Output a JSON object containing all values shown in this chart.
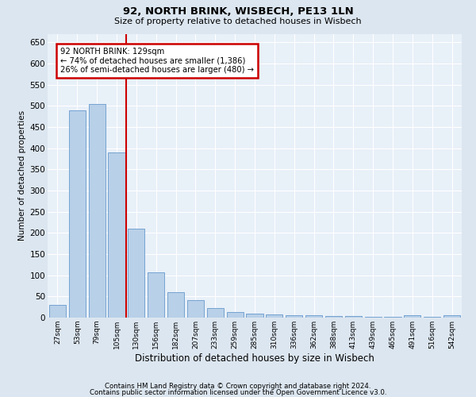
{
  "title1": "92, NORTH BRINK, WISBECH, PE13 1LN",
  "title2": "Size of property relative to detached houses in Wisbech",
  "xlabel": "Distribution of detached houses by size in Wisbech",
  "ylabel": "Number of detached properties",
  "categories": [
    "27sqm",
    "53sqm",
    "79sqm",
    "105sqm",
    "130sqm",
    "156sqm",
    "182sqm",
    "207sqm",
    "233sqm",
    "259sqm",
    "285sqm",
    "310sqm",
    "336sqm",
    "362sqm",
    "388sqm",
    "413sqm",
    "439sqm",
    "465sqm",
    "491sqm",
    "516sqm",
    "542sqm"
  ],
  "values": [
    30,
    490,
    505,
    390,
    210,
    107,
    60,
    42,
    22,
    14,
    10,
    8,
    6,
    5,
    4,
    3,
    2,
    2,
    5,
    1,
    5
  ],
  "bar_color": "#b8d0e8",
  "bar_edge_color": "#6699cc",
  "annotation_line1": "92 NORTH BRINK: 129sqm",
  "annotation_line2": "← 74% of detached houses are smaller (1,386)",
  "annotation_line3": "26% of semi-detached houses are larger (480) →",
  "annotation_box_color": "#ffffff",
  "annotation_box_edge": "#cc0000",
  "property_line_color": "#cc0000",
  "ylim": [
    0,
    670
  ],
  "yticks": [
    0,
    50,
    100,
    150,
    200,
    250,
    300,
    350,
    400,
    450,
    500,
    550,
    600,
    650
  ],
  "footer1": "Contains HM Land Registry data © Crown copyright and database right 2024.",
  "footer2": "Contains public sector information licensed under the Open Government Licence v3.0.",
  "bg_color": "#dce6f0",
  "plot_bg_color": "#e8f0f8"
}
